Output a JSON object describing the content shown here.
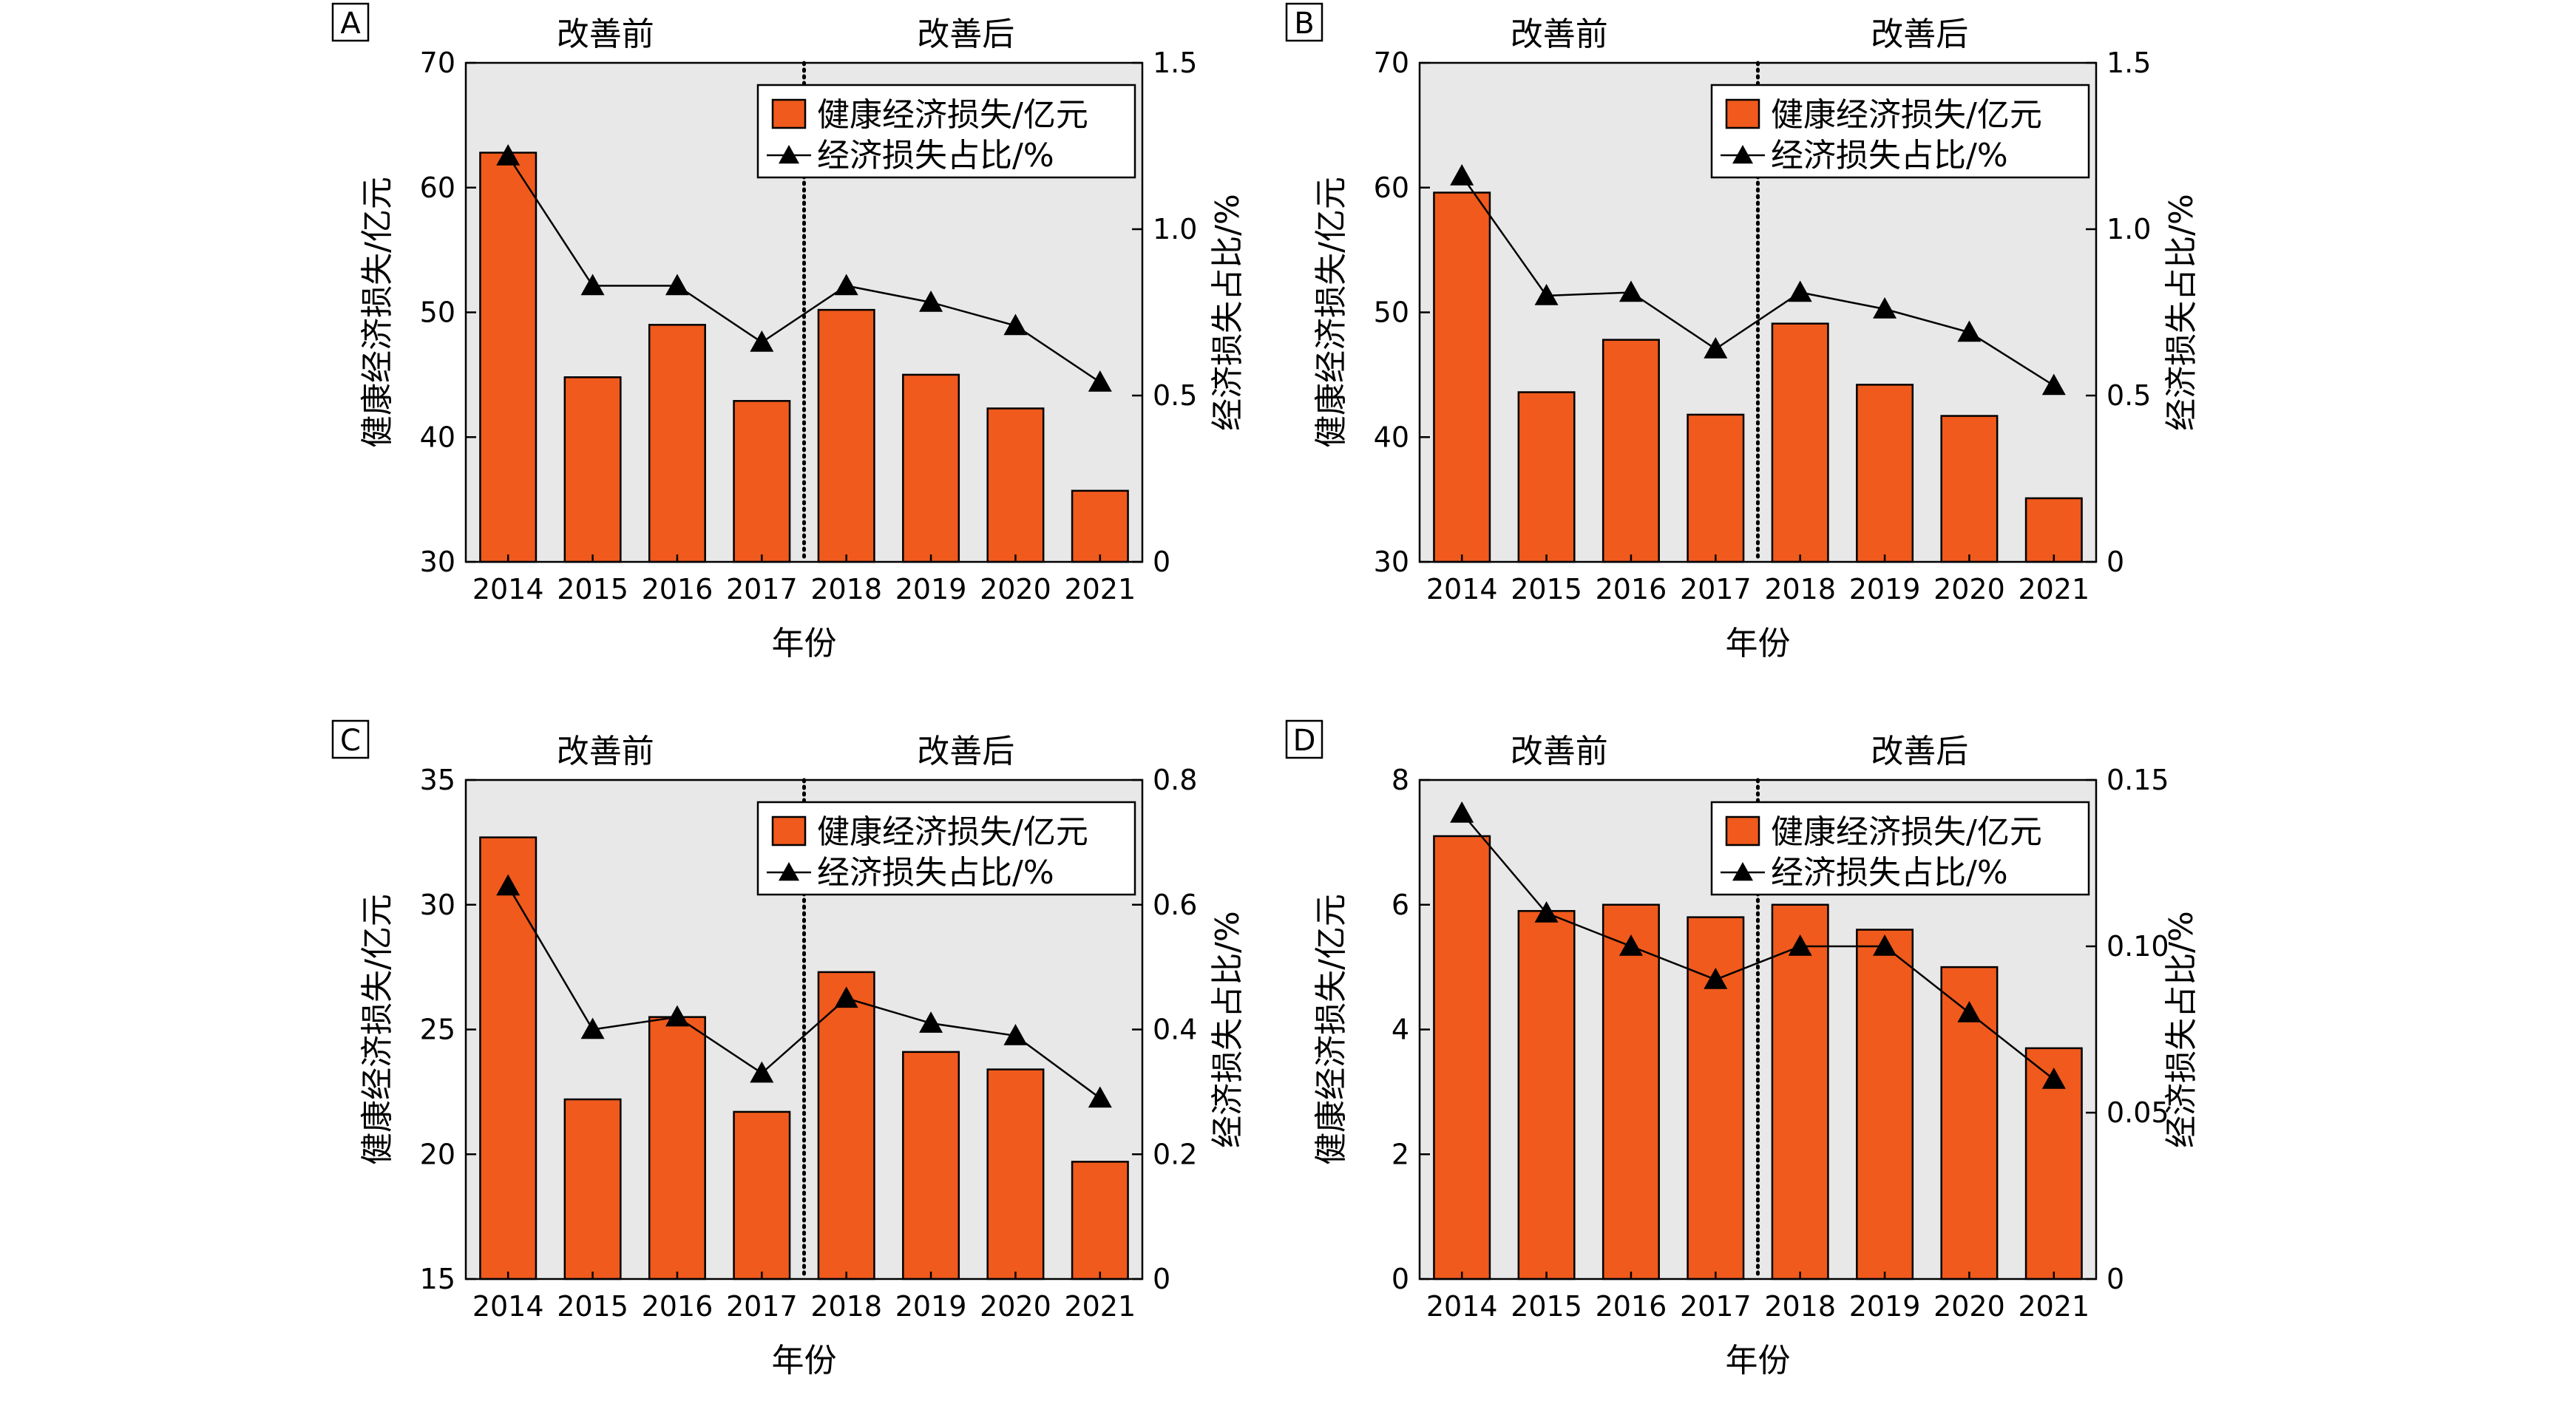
{
  "chart_data": [
    {
      "panel": "A",
      "type": "bar",
      "categories": [
        "2014",
        "2015",
        "2016",
        "2017",
        "2018",
        "2019",
        "2020",
        "2021"
      ],
      "series": [
        {
          "name": "健康经济损失/亿元",
          "type": "bar",
          "axis": "left",
          "values": [
            62.8,
            44.8,
            49.0,
            42.9,
            50.2,
            45.0,
            42.3,
            35.7
          ]
        },
        {
          "name": "经济损失占比/%",
          "type": "line",
          "axis": "right",
          "marker": "triangle",
          "values": [
            1.22,
            0.83,
            0.83,
            0.66,
            0.83,
            0.78,
            0.71,
            0.54
          ]
        }
      ],
      "xlabel": "年份",
      "ylabel": "健康经济损失/亿元",
      "y2label": "经济损失占比/%",
      "ylim": [
        30,
        70
      ],
      "yticks": [
        "30",
        "40",
        "50",
        "60",
        "70"
      ],
      "y2lim": [
        0,
        1.5
      ],
      "y2ticks": [
        "0",
        "0.5",
        "1.0",
        "1.5"
      ],
      "periods": [
        "改善前",
        "改善后"
      ],
      "divider_between": [
        "2017",
        "2018"
      ],
      "legend_position": "top-right",
      "grid": false
    },
    {
      "panel": "B",
      "type": "bar",
      "categories": [
        "2014",
        "2015",
        "2016",
        "2017",
        "2018",
        "2019",
        "2020",
        "2021"
      ],
      "series": [
        {
          "name": "健康经济损失/亿元",
          "type": "bar",
          "axis": "left",
          "values": [
            59.6,
            43.6,
            47.8,
            41.8,
            49.1,
            44.2,
            41.7,
            35.1
          ]
        },
        {
          "name": "经济损失占比/%",
          "type": "line",
          "axis": "right",
          "marker": "triangle",
          "values": [
            1.16,
            0.8,
            0.81,
            0.64,
            0.81,
            0.76,
            0.69,
            0.53
          ]
        }
      ],
      "xlabel": "年份",
      "ylabel": "健康经济损失/亿元",
      "y2label": "经济损失占比/%",
      "ylim": [
        30,
        70
      ],
      "yticks": [
        "30",
        "40",
        "50",
        "60",
        "70"
      ],
      "y2lim": [
        0,
        1.5
      ],
      "y2ticks": [
        "0",
        "0.5",
        "1.0",
        "1.5"
      ],
      "periods": [
        "改善前",
        "改善后"
      ],
      "divider_between": [
        "2017",
        "2018"
      ],
      "legend_position": "top-right",
      "grid": false
    },
    {
      "panel": "C",
      "type": "bar",
      "categories": [
        "2014",
        "2015",
        "2016",
        "2017",
        "2018",
        "2019",
        "2020",
        "2021"
      ],
      "series": [
        {
          "name": "健康经济损失/亿元",
          "type": "bar",
          "axis": "left",
          "values": [
            32.7,
            22.2,
            25.5,
            21.7,
            27.3,
            24.1,
            23.4,
            19.7
          ]
        },
        {
          "name": "经济损失占比/%",
          "type": "line",
          "axis": "right",
          "marker": "triangle",
          "values": [
            0.63,
            0.4,
            0.42,
            0.33,
            0.45,
            0.41,
            0.39,
            0.29
          ]
        }
      ],
      "xlabel": "年份",
      "ylabel": "健康经济损失/亿元",
      "y2label": "经济损失占比/%",
      "ylim": [
        15,
        35
      ],
      "yticks": [
        "15",
        "20",
        "25",
        "30",
        "35"
      ],
      "y2lim": [
        0,
        0.8
      ],
      "y2ticks": [
        "0",
        "0.2",
        "0.4",
        "0.6",
        "0.8"
      ],
      "periods": [
        "改善前",
        "改善后"
      ],
      "divider_between": [
        "2017",
        "2018"
      ],
      "legend_position": "top-right",
      "grid": false
    },
    {
      "panel": "D",
      "type": "bar",
      "categories": [
        "2014",
        "2015",
        "2016",
        "2017",
        "2018",
        "2019",
        "2020",
        "2021"
      ],
      "series": [
        {
          "name": "健康经济损失/亿元",
          "type": "bar",
          "axis": "left",
          "values": [
            7.1,
            5.9,
            6.0,
            5.8,
            6.0,
            5.6,
            5.0,
            3.7
          ]
        },
        {
          "name": "经济损失占比/%",
          "type": "line",
          "axis": "right",
          "marker": "triangle",
          "values": [
            0.14,
            0.11,
            0.1,
            0.09,
            0.1,
            0.1,
            0.08,
            0.06
          ]
        }
      ],
      "xlabel": "年份",
      "ylabel": "健康经济损失/亿元",
      "y2label": "经济损失占比/%",
      "ylim": [
        0,
        8
      ],
      "yticks": [
        "0",
        "2",
        "4",
        "6",
        "8"
      ],
      "y2lim": [
        0,
        0.15
      ],
      "y2ticks": [
        "0",
        "0.05",
        "0.10",
        "0.15"
      ],
      "periods": [
        "改善前",
        "改善后"
      ],
      "divider_between": [
        "2017",
        "2018"
      ],
      "legend_position": "top-right",
      "grid": false
    }
  ],
  "colors": {
    "bar": "#f05a1c",
    "plot_background": "#e8e8e8",
    "line": "#000000"
  }
}
